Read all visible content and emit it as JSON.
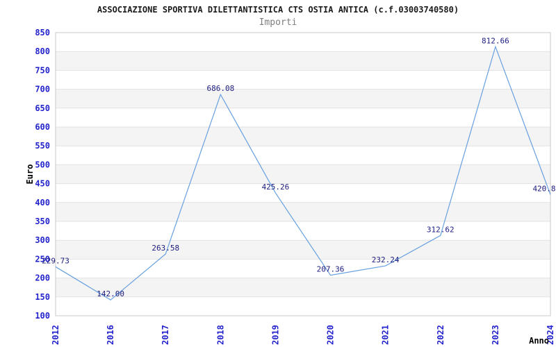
{
  "header": {
    "title": "ASSOCIAZIONE SPORTIVA DILETTANTISTICA CTS OSTIA ANTICA (c.f.03003740580)",
    "subtitle": "Importi"
  },
  "chart_data": {
    "type": "line",
    "title": "Importi",
    "xlabel": "Anno",
    "ylabel": "Euro",
    "categories": [
      "2012",
      "2016",
      "2017",
      "2018",
      "2019",
      "2020",
      "2021",
      "2022",
      "2023",
      "2024"
    ],
    "values": [
      229.73,
      142.0,
      263.58,
      686.08,
      425.26,
      207.36,
      232.24,
      312.62,
      812.66,
      420.8
    ],
    "point_labels": [
      "229.73",
      "142.00",
      "263.58",
      "686.08",
      "425.26",
      "207.36",
      "232.24",
      "312.62",
      "812.66",
      "420.8"
    ],
    "ylim": [
      100,
      850
    ],
    "ytick_step": 50,
    "yticks": [
      100,
      150,
      200,
      250,
      300,
      350,
      400,
      450,
      500,
      550,
      600,
      650,
      700,
      750,
      800,
      850
    ],
    "grid": true,
    "legend": "none",
    "band_fill_alternating": true,
    "colors": {
      "line": "#67a0e0",
      "tick_label": "#2323cc",
      "data_label": "#1b1b7e",
      "band": "#f4f4f4",
      "gridline": "#e2e2e2",
      "border": "#c9c9c9",
      "title": "#1a1a1a",
      "subtitle": "#7e7e7e",
      "axis_name": "#000000"
    }
  }
}
